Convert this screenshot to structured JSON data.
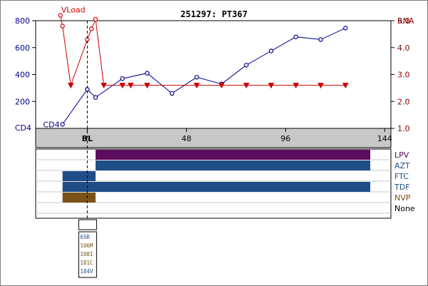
{
  "chart_data": {
    "type": "line",
    "title": "251297: PT367",
    "left_axis": {
      "label": "CD4",
      "ticks": [
        200,
        400,
        600,
        800
      ],
      "range": [
        0,
        800
      ]
    },
    "right_axis": {
      "label": "RNA",
      "ticks": [
        "1.0",
        "2.0",
        "3.0",
        "4.0",
        "5.0"
      ],
      "range": [
        1.0,
        5.0
      ]
    },
    "x_axis": {
      "ticks": [
        {
          "value": 0,
          "label": "BL"
        },
        {
          "value": 48,
          "label": "48"
        },
        {
          "value": 96,
          "label": "96"
        },
        {
          "value": 144,
          "label": "144"
        }
      ],
      "range": [
        -25,
        147
      ]
    },
    "baseline_x": 0,
    "series": [
      {
        "name": "CD4",
        "axis": "left",
        "color": "#00008b",
        "marker": "circle",
        "x": [
          -12,
          0,
          4,
          17,
          29,
          41,
          53,
          65,
          77,
          89,
          101,
          113,
          125
        ],
        "y": [
          30,
          290,
          230,
          370,
          410,
          260,
          380,
          330,
          470,
          575,
          680,
          660,
          745
        ]
      },
      {
        "name": "VLoad",
        "axis": "right",
        "color": "#cc0000",
        "x": [
          -13,
          -12,
          -8,
          0,
          2,
          4,
          8,
          17,
          21,
          29,
          53,
          65,
          77,
          89,
          101,
          113,
          125
        ],
        "y": [
          5.2,
          4.8,
          2.6,
          4.3,
          4.7,
          5.05,
          2.6,
          2.6,
          2.6,
          2.6,
          2.6,
          2.6,
          2.6,
          2.6,
          2.6,
          2.6,
          2.6
        ],
        "markers": [
          "circle",
          "circle",
          "triangle",
          "circle",
          "circle",
          "circle",
          "triangle",
          "triangle",
          "triangle",
          "triangle",
          "triangle",
          "triangle",
          "triangle",
          "triangle",
          "triangle",
          "triangle",
          "triangle"
        ]
      }
    ],
    "drugs": [
      {
        "name": "LPV",
        "color": "#5c0c5c",
        "label_color": "#5c0c5c",
        "start": 4,
        "end": 137
      },
      {
        "name": "AZT",
        "color": "#1f4e87",
        "label_color": "#1f4e87",
        "start": 4,
        "end": 137
      },
      {
        "name": "FTC",
        "color": "#1f4e87",
        "label_color": "#1f4e87",
        "start": -12,
        "end": 4
      },
      {
        "name": "TDF",
        "color": "#1f4e87",
        "label_color": "#1f4e87",
        "start": -12,
        "end": 137
      },
      {
        "name": "NVP",
        "color": "#7a5218",
        "label_color": "#7a5218",
        "start": -12,
        "end": 4
      },
      {
        "name": "None",
        "color": "#000000",
        "label_color": "#000000",
        "start": null,
        "end": null
      }
    ],
    "mutations": [
      {
        "label": "65R",
        "color": "#1f4e87"
      },
      {
        "label": "106M",
        "color": "#7a5218"
      },
      {
        "label": "108I",
        "color": "#7a5218"
      },
      {
        "label": "181C",
        "color": "#7a5218"
      },
      {
        "label": "184V",
        "color": "#1f4e87"
      }
    ]
  }
}
